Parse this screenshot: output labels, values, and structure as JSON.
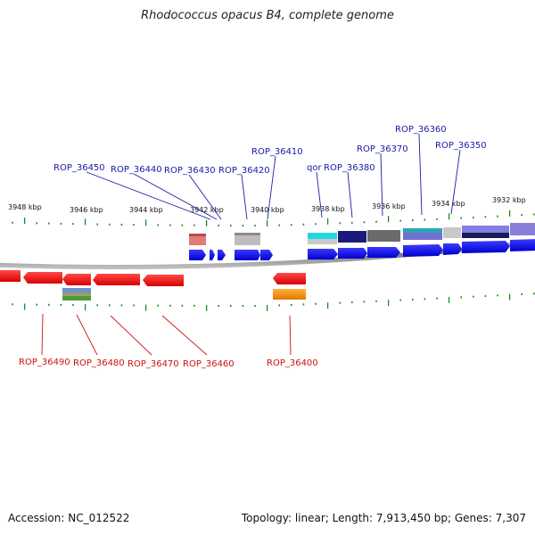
{
  "title": "Rhodococcus opacus B4, complete genome",
  "footer": {
    "accession": "Accession: NC_012522",
    "summary": "Topology: linear; Length: 7,913,450 bp; Genes: 7,307"
  },
  "scale_labels": [
    "3948 kbp",
    "3946 kbp",
    "3944 kbp",
    "3942 kbp",
    "3940 kbp",
    "3938 kbp",
    "3936 kbp",
    "3934 kbp",
    "3932 kbp"
  ],
  "forward_genes": [
    "ROP_36450",
    "ROP_36440",
    "ROP_36430",
    "ROP_36420",
    "ROP_36410",
    "qor",
    "ROP_36380",
    "ROP_36370",
    "ROP_36360",
    "ROP_36350"
  ],
  "reverse_genes": [
    "ROP_36490",
    "ROP_36480",
    "ROP_36470",
    "ROP_36460",
    "ROP_36400"
  ],
  "colors": {
    "forward_label": "#1a1aa6",
    "reverse_label": "#cc1111",
    "forward_gene": "#0a0af0",
    "reverse_gene": "#ee1111",
    "tick": "#1e8a1e",
    "backbone": "#888888"
  }
}
